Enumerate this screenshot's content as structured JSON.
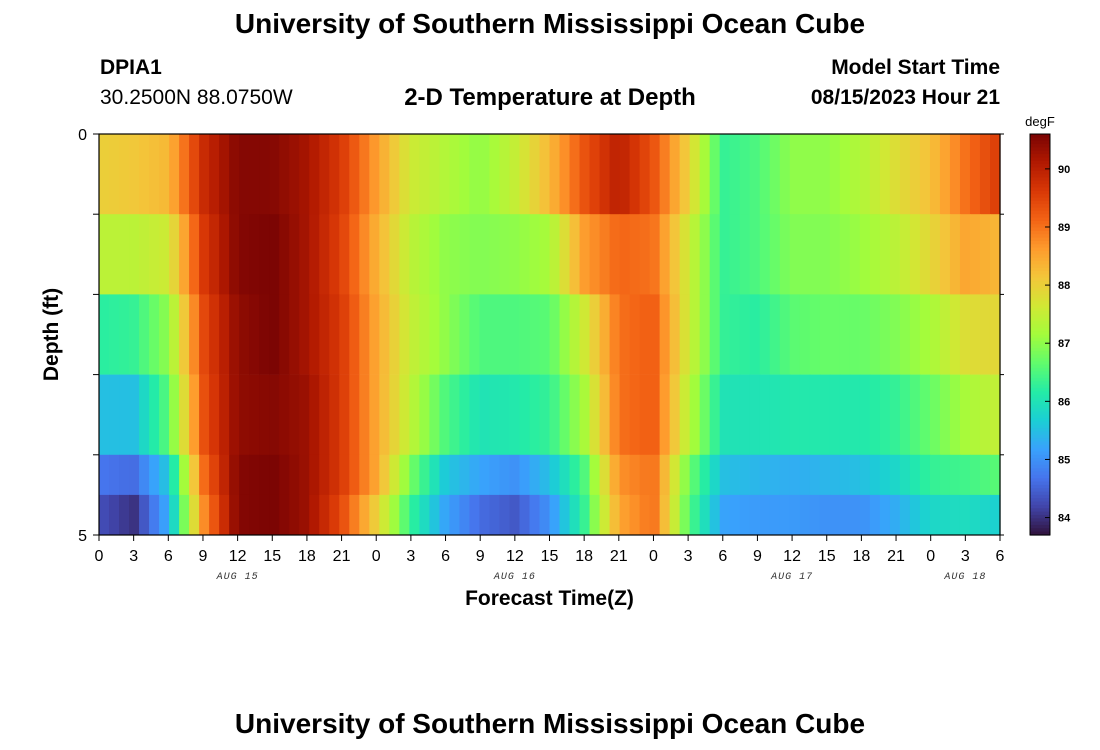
{
  "header": {
    "title": "University of Southern Mississippi Ocean Cube",
    "station_id": "DPIA1",
    "coordinates": "30.2500N  88.0750W",
    "plot_title": "2-D Temperature at Depth",
    "start_label": "Model Start Time",
    "start_value": "08/15/2023 Hour 21"
  },
  "footer": {
    "title": "University of Southern Mississippi Ocean Cube"
  },
  "chart_data": {
    "type": "heatmap",
    "title": "2-D Temperature at Depth",
    "xlabel": "Forecast Time(Z)",
    "ylabel": "Depth (ft)",
    "x_tick_labels": [
      "0",
      "3",
      "6",
      "9",
      "12",
      "15",
      "18",
      "21",
      "0",
      "3",
      "6",
      "9",
      "12",
      "15",
      "18",
      "21",
      "0",
      "3",
      "6",
      "9",
      "12",
      "15",
      "18",
      "21",
      "0",
      "3",
      "6"
    ],
    "date_labels": [
      {
        "label": "AUG 15",
        "tick_index": 4
      },
      {
        "label": "AUG 16",
        "tick_index": 12
      },
      {
        "label": "AUG 17",
        "tick_index": 20
      },
      {
        "label": "AUG 18",
        "tick_index": 25
      }
    ],
    "y_tick_labels": [
      "0",
      "5"
    ],
    "ylim": [
      0,
      5
    ],
    "colorbar": {
      "unit": "degF",
      "range": [
        83.7,
        90.6
      ],
      "ticks": [
        84,
        85,
        86,
        87,
        88,
        89,
        90
      ],
      "colors": [
        "#30123b",
        "#4145ab",
        "#4675ed",
        "#39a2fc",
        "#1bcfd4",
        "#24eca6",
        "#61fc6c",
        "#a4fc3b",
        "#d1e834",
        "#f3c63a",
        "#fe9b2d",
        "#f36315",
        "#d93806",
        "#b11901",
        "#7a0403"
      ]
    },
    "depths_ft": [
      0.5,
      1.5,
      2.5,
      3.5,
      4.5,
      5.0
    ],
    "hours_from_aug15_00z": [
      0,
      3,
      6,
      9,
      12,
      15,
      18,
      21,
      24,
      27,
      30,
      33,
      36,
      39,
      42,
      45,
      48,
      51,
      54,
      57,
      60,
      63,
      66,
      69,
      72,
      75,
      78
    ],
    "series": [
      {
        "depth_ft": 0.5,
        "values": [
          88.0,
          88.1,
          88.3,
          89.8,
          90.5,
          90.5,
          90.2,
          89.6,
          88.6,
          87.6,
          87.3,
          87.0,
          87.5,
          88.3,
          89.3,
          90.0,
          89.3,
          88.0,
          86.3,
          86.5,
          87.0,
          87.0,
          87.3,
          87.8,
          88.2,
          89.0,
          89.6
        ]
      },
      {
        "depth_ft": 1.5,
        "values": [
          87.4,
          87.4,
          87.6,
          89.6,
          90.5,
          90.6,
          90.2,
          89.5,
          88.4,
          87.4,
          87.0,
          86.9,
          87.0,
          87.2,
          88.6,
          89.1,
          89.0,
          87.6,
          86.3,
          86.5,
          86.9,
          86.9,
          87.1,
          87.4,
          87.9,
          88.5,
          88.3
        ]
      },
      {
        "depth_ft": 2.5,
        "values": [
          86.2,
          86.3,
          87.0,
          89.4,
          90.4,
          90.6,
          90.2,
          89.6,
          88.5,
          87.5,
          87.0,
          86.5,
          86.5,
          86.6,
          87.6,
          89.0,
          89.2,
          87.6,
          86.3,
          86.2,
          86.6,
          86.7,
          86.7,
          86.9,
          87.2,
          87.8,
          87.9
        ]
      },
      {
        "depth_ft": 3.5,
        "values": [
          85.5,
          85.5,
          86.6,
          89.3,
          90.4,
          90.5,
          90.3,
          89.6,
          88.5,
          87.4,
          86.5,
          86.0,
          86.1,
          86.3,
          87.2,
          89.0,
          89.2,
          87.4,
          86.0,
          86.0,
          86.1,
          86.1,
          86.1,
          86.3,
          86.7,
          87.2,
          87.5
        ]
      },
      {
        "depth_ft": 4.5,
        "values": [
          84.7,
          84.6,
          85.6,
          89.0,
          90.5,
          90.6,
          90.3,
          89.6,
          88.5,
          86.8,
          85.6,
          85.2,
          85.0,
          85.5,
          86.5,
          88.7,
          89.0,
          86.8,
          85.5,
          85.4,
          85.3,
          85.4,
          85.5,
          85.8,
          86.3,
          86.4,
          86.6
        ]
      },
      {
        "depth_ft": 5.0,
        "values": [
          84.3,
          84.0,
          85.3,
          88.7,
          90.5,
          90.6,
          90.3,
          89.4,
          88.0,
          86.3,
          85.2,
          84.6,
          84.4,
          85.0,
          86.3,
          88.5,
          89.0,
          86.6,
          85.2,
          85.1,
          85.1,
          85.0,
          85.0,
          85.3,
          85.8,
          85.9,
          85.7
        ]
      }
    ]
  }
}
